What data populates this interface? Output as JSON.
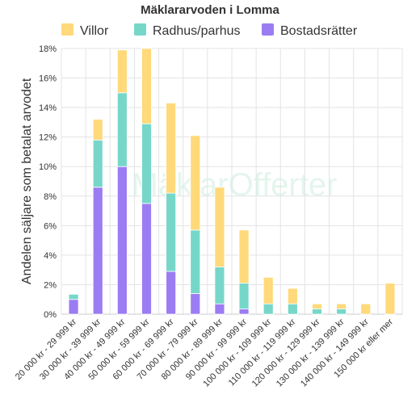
{
  "chart_data": {
    "type": "bar",
    "stacked": true,
    "title": "Mäklararvoden i Lomma",
    "ylabel": "Andelen säljare som betalat arvodet",
    "xlabel": "",
    "ylim": [
      0,
      18
    ],
    "yticks": [
      "0%",
      "2%",
      "4%",
      "6%",
      "8%",
      "10%",
      "12%",
      "14%",
      "16%",
      "18%"
    ],
    "grid": true,
    "legend_position": "top",
    "watermark": "MäklarOfferter",
    "categories": [
      "20 000 kr - 29 999 kr",
      "30 000 kr - 39 999 kr",
      "40 000 kr - 49 999 kr",
      "50 000 kr - 59 999 kr",
      "60 000 kr - 69 999 kr",
      "70 000 kr - 79 999 kr",
      "80 000 kr - 89 999 kr",
      "90 000 kr - 99 999 kr",
      "100 000 kr - 109 999 kr",
      "110 000 kr - 119 999 kr",
      "120 000 kr - 129 999 kr",
      "130 000 kr - 139 999 kr",
      "140 000 kr - 149 999 kr",
      "150 000 kr eller mer"
    ],
    "series": [
      {
        "name": "Bostadsrätter",
        "color": "#9b7cf2",
        "values": [
          1.0,
          8.6,
          10.0,
          7.5,
          2.9,
          1.4,
          0.7,
          0.35,
          0,
          0,
          0,
          0,
          0,
          0
        ]
      },
      {
        "name": "Radhus/parhus",
        "color": "#76d7c9",
        "values": [
          0.35,
          3.2,
          5.0,
          5.4,
          5.3,
          4.3,
          2.5,
          1.75,
          0.7,
          0.7,
          0.35,
          0.35,
          0,
          0
        ]
      },
      {
        "name": "Villor",
        "color": "#ffd97a",
        "values": [
          0,
          1.4,
          2.9,
          5.1,
          6.1,
          6.4,
          5.4,
          3.6,
          1.8,
          1.05,
          0.35,
          0.35,
          0.7,
          2.1
        ]
      }
    ],
    "legend_order": [
      "Villor",
      "Radhus/parhus",
      "Bostadsrätter"
    ]
  }
}
